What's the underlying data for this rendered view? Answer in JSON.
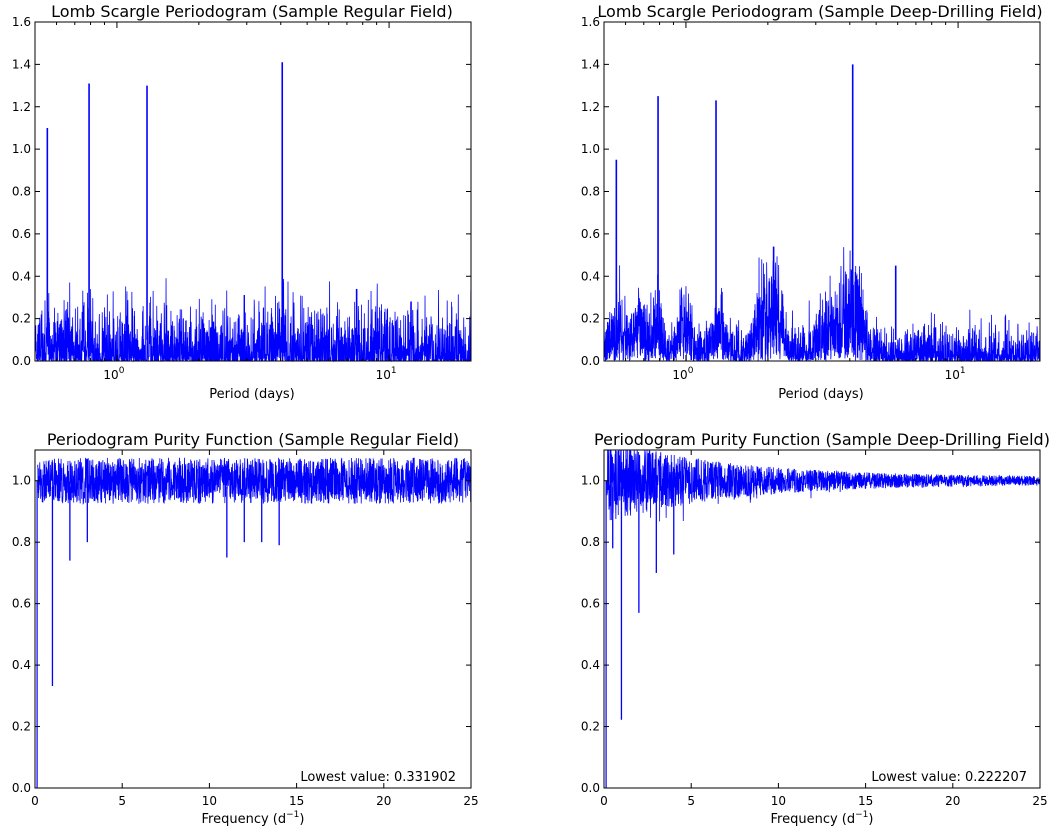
{
  "colors": {
    "line": "#0000ff",
    "axes": "#000000",
    "background": "#ffffff"
  },
  "chart_data": [
    {
      "id": "p1",
      "type": "line",
      "title": "Lomb Scargle Periodogram (Sample Regular Field)",
      "xlabel": "Period (days)",
      "ylabel": "",
      "xscale": "log",
      "xlim": [
        0.5,
        20
      ],
      "ylim": [
        0,
        1.6
      ],
      "xticks": [
        {
          "value": 1,
          "base": "10",
          "exp": "0"
        },
        {
          "value": 10,
          "base": "10",
          "exp": "1"
        }
      ],
      "yticks": [
        "0.0",
        "0.2",
        "0.4",
        "0.6",
        "0.8",
        "1.0",
        "1.2",
        "1.4",
        "1.6"
      ],
      "noise": {
        "base": 0.07,
        "spread": 0.15
      },
      "peaks": [
        {
          "period": 0.555,
          "value": 1.1
        },
        {
          "period": 0.79,
          "value": 1.31
        },
        {
          "period": 1.29,
          "value": 1.3
        },
        {
          "period": 4.05,
          "value": 1.41
        },
        {
          "period": 7.6,
          "value": 0.34
        }
      ],
      "grid": false
    },
    {
      "id": "p2",
      "type": "line",
      "title": "Lomb Scargle Periodogram (Sample Deep-Drilling Field)",
      "xlabel": "Period (days)",
      "ylabel": "",
      "xscale": "log",
      "xlim": [
        0.5,
        20
      ],
      "ylim": [
        0,
        1.6
      ],
      "xticks": [
        {
          "value": 1,
          "base": "10",
          "exp": "0"
        },
        {
          "value": 10,
          "base": "10",
          "exp": "1"
        }
      ],
      "yticks": [
        "0.0",
        "0.2",
        "0.4",
        "0.6",
        "0.8",
        "1.0",
        "1.2",
        "1.4",
        "1.6"
      ],
      "noise": {
        "base": 0.05,
        "spread": 0.08
      },
      "peaks": [
        {
          "period": 0.555,
          "value": 0.95
        },
        {
          "period": 0.79,
          "value": 1.25
        },
        {
          "period": 1.29,
          "value": 1.23
        },
        {
          "period": 4.1,
          "value": 1.4
        },
        {
          "period": 5.9,
          "value": 0.45
        },
        {
          "period": 2.1,
          "value": 0.54
        }
      ],
      "grid": false
    },
    {
      "id": "p3",
      "type": "line",
      "title": "Periodogram Purity Function (Sample Regular Field)",
      "xlabel": "Frequency (d",
      "xlabel_sup": "−1",
      "xlabel_end": ")",
      "ylabel": "",
      "xlim": [
        0,
        25
      ],
      "ylim": [
        0,
        1.1
      ],
      "xticks": [
        "0",
        "5",
        "10",
        "15",
        "20",
        "25"
      ],
      "yticks": [
        "0.0",
        "0.2",
        "0.4",
        "0.6",
        "0.8",
        "1.0"
      ],
      "dips": [
        {
          "freq": 1.0,
          "value": 0.331902
        },
        {
          "freq": 2.0,
          "value": 0.74
        },
        {
          "freq": 3.0,
          "value": 0.8
        },
        {
          "freq": 11.0,
          "value": 0.75
        },
        {
          "freq": 12.0,
          "value": 0.8
        },
        {
          "freq": 13.0,
          "value": 0.8
        },
        {
          "freq": 14.0,
          "value": 0.79
        }
      ],
      "annotation": "Lowest value: 0.331902",
      "grid": false
    },
    {
      "id": "p4",
      "type": "line",
      "title": "Periodogram Purity Function (Sample Deep-Drilling Field)",
      "xlabel": "Frequency (d",
      "xlabel_sup": "−1",
      "xlabel_end": ")",
      "ylabel": "",
      "xlim": [
        0,
        25
      ],
      "ylim": [
        0,
        1.1
      ],
      "xticks": [
        "0",
        "5",
        "10",
        "15",
        "20",
        "25"
      ],
      "yticks": [
        "0.0",
        "0.2",
        "0.4",
        "0.6",
        "0.8",
        "1.0"
      ],
      "dips": [
        {
          "freq": 1.0,
          "value": 0.222207
        },
        {
          "freq": 2.0,
          "value": 0.57
        },
        {
          "freq": 3.0,
          "value": 0.7
        },
        {
          "freq": 4.0,
          "value": 0.76
        },
        {
          "freq": 0.5,
          "value": 0.78
        }
      ],
      "annotation": "Lowest value: 0.222207",
      "grid": false
    }
  ]
}
